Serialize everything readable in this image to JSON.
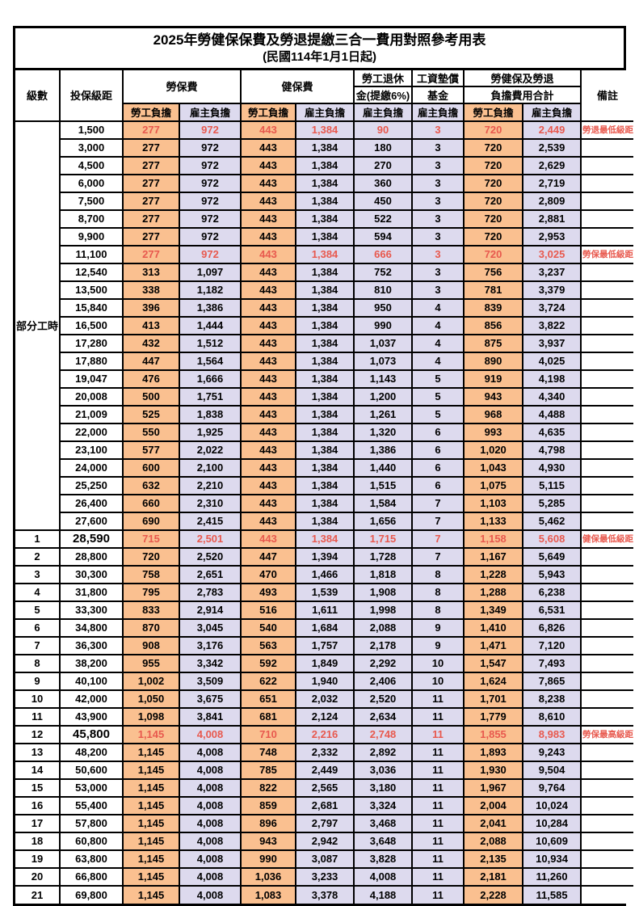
{
  "title": "2025年勞健保保費及勞退提繳三合一費用對照參考用表",
  "subtitle": "(民國114年1月1日起)",
  "colors": {
    "employee_column_bg": "#FAC090",
    "employer_column_bg": "#DDDAEE",
    "highlight_text": "#E8594E",
    "border": "#000000"
  },
  "table": {
    "headers": {
      "level": "級數",
      "bracket": "投保級距",
      "labor_insurance": "勞保費",
      "health_insurance": "健保費",
      "pension_line1": "勞工退休",
      "pension_line2": "金(提繳6%)",
      "fund_line1": "工資墊償",
      "fund_line2": "基金",
      "total_line1": "勞健保及勞退",
      "total_line2": "負擔費用合計",
      "note": "備註",
      "employee": "勞工負擔",
      "employer": "雇主負擔"
    },
    "part_time_label": "部分工時",
    "rows": [
      {
        "level": "",
        "bracket": "1,500",
        "values": [
          "277",
          "972",
          "443",
          "1,384",
          "90",
          "3",
          "720",
          "2,449"
        ],
        "highlight": true,
        "note": "勞退最低級距"
      },
      {
        "level": "",
        "bracket": "3,000",
        "values": [
          "277",
          "972",
          "443",
          "1,384",
          "180",
          "3",
          "720",
          "2,539"
        ],
        "highlight": false,
        "note": ""
      },
      {
        "level": "",
        "bracket": "4,500",
        "values": [
          "277",
          "972",
          "443",
          "1,384",
          "270",
          "3",
          "720",
          "2,629"
        ],
        "highlight": false,
        "note": ""
      },
      {
        "level": "",
        "bracket": "6,000",
        "values": [
          "277",
          "972",
          "443",
          "1,384",
          "360",
          "3",
          "720",
          "2,719"
        ],
        "highlight": false,
        "note": ""
      },
      {
        "level": "",
        "bracket": "7,500",
        "values": [
          "277",
          "972",
          "443",
          "1,384",
          "450",
          "3",
          "720",
          "2,809"
        ],
        "highlight": false,
        "note": ""
      },
      {
        "level": "",
        "bracket": "8,700",
        "values": [
          "277",
          "972",
          "443",
          "1,384",
          "522",
          "3",
          "720",
          "2,881"
        ],
        "highlight": false,
        "note": ""
      },
      {
        "level": "",
        "bracket": "9,900",
        "values": [
          "277",
          "972",
          "443",
          "1,384",
          "594",
          "3",
          "720",
          "2,953"
        ],
        "highlight": false,
        "note": ""
      },
      {
        "level": "",
        "bracket": "11,100",
        "values": [
          "277",
          "972",
          "443",
          "1,384",
          "666",
          "3",
          "720",
          "3,025"
        ],
        "highlight": true,
        "note": "勞保最低級距"
      },
      {
        "level": "",
        "bracket": "12,540",
        "values": [
          "313",
          "1,097",
          "443",
          "1,384",
          "752",
          "3",
          "756",
          "3,237"
        ],
        "highlight": false,
        "note": ""
      },
      {
        "level": "",
        "bracket": "13,500",
        "values": [
          "338",
          "1,182",
          "443",
          "1,384",
          "810",
          "3",
          "781",
          "3,379"
        ],
        "highlight": false,
        "note": ""
      },
      {
        "level": "",
        "bracket": "15,840",
        "values": [
          "396",
          "1,386",
          "443",
          "1,384",
          "950",
          "4",
          "839",
          "3,724"
        ],
        "highlight": false,
        "note": ""
      },
      {
        "level": "",
        "bracket": "16,500",
        "values": [
          "413",
          "1,444",
          "443",
          "1,384",
          "990",
          "4",
          "856",
          "3,822"
        ],
        "highlight": false,
        "note": ""
      },
      {
        "level": "",
        "bracket": "17,280",
        "values": [
          "432",
          "1,512",
          "443",
          "1,384",
          "1,037",
          "4",
          "875",
          "3,937"
        ],
        "highlight": false,
        "note": ""
      },
      {
        "level": "",
        "bracket": "17,880",
        "values": [
          "447",
          "1,564",
          "443",
          "1,384",
          "1,073",
          "4",
          "890",
          "4,025"
        ],
        "highlight": false,
        "note": ""
      },
      {
        "level": "",
        "bracket": "19,047",
        "values": [
          "476",
          "1,666",
          "443",
          "1,384",
          "1,143",
          "5",
          "919",
          "4,198"
        ],
        "highlight": false,
        "note": ""
      },
      {
        "level": "",
        "bracket": "20,008",
        "values": [
          "500",
          "1,751",
          "443",
          "1,384",
          "1,200",
          "5",
          "943",
          "4,340"
        ],
        "highlight": false,
        "note": ""
      },
      {
        "level": "",
        "bracket": "21,009",
        "values": [
          "525",
          "1,838",
          "443",
          "1,384",
          "1,261",
          "5",
          "968",
          "4,488"
        ],
        "highlight": false,
        "note": ""
      },
      {
        "level": "",
        "bracket": "22,000",
        "values": [
          "550",
          "1,925",
          "443",
          "1,384",
          "1,320",
          "6",
          "993",
          "4,635"
        ],
        "highlight": false,
        "note": ""
      },
      {
        "level": "",
        "bracket": "23,100",
        "values": [
          "577",
          "2,022",
          "443",
          "1,384",
          "1,386",
          "6",
          "1,020",
          "4,798"
        ],
        "highlight": false,
        "note": ""
      },
      {
        "level": "",
        "bracket": "24,000",
        "values": [
          "600",
          "2,100",
          "443",
          "1,384",
          "1,440",
          "6",
          "1,043",
          "4,930"
        ],
        "highlight": false,
        "note": ""
      },
      {
        "level": "",
        "bracket": "25,250",
        "values": [
          "632",
          "2,210",
          "443",
          "1,384",
          "1,515",
          "6",
          "1,075",
          "5,115"
        ],
        "highlight": false,
        "note": ""
      },
      {
        "level": "",
        "bracket": "26,400",
        "values": [
          "660",
          "2,310",
          "443",
          "1,384",
          "1,584",
          "7",
          "1,103",
          "5,285"
        ],
        "highlight": false,
        "note": ""
      },
      {
        "level": "",
        "bracket": "27,600",
        "values": [
          "690",
          "2,415",
          "443",
          "1,384",
          "1,656",
          "7",
          "1,133",
          "5,462"
        ],
        "highlight": false,
        "note": ""
      },
      {
        "level": "1",
        "bracket": "28,590",
        "values": [
          "715",
          "2,501",
          "443",
          "1,384",
          "1,715",
          "7",
          "1,158",
          "5,608"
        ],
        "highlight": true,
        "emphasis": true,
        "note": "健保最低級距"
      },
      {
        "level": "2",
        "bracket": "28,800",
        "values": [
          "720",
          "2,520",
          "447",
          "1,394",
          "1,728",
          "7",
          "1,167",
          "5,649"
        ],
        "highlight": false,
        "note": ""
      },
      {
        "level": "3",
        "bracket": "30,300",
        "values": [
          "758",
          "2,651",
          "470",
          "1,466",
          "1,818",
          "8",
          "1,228",
          "5,943"
        ],
        "highlight": false,
        "note": ""
      },
      {
        "level": "4",
        "bracket": "31,800",
        "values": [
          "795",
          "2,783",
          "493",
          "1,539",
          "1,908",
          "8",
          "1,288",
          "6,238"
        ],
        "highlight": false,
        "note": ""
      },
      {
        "level": "5",
        "bracket": "33,300",
        "values": [
          "833",
          "2,914",
          "516",
          "1,611",
          "1,998",
          "8",
          "1,349",
          "6,531"
        ],
        "highlight": false,
        "note": ""
      },
      {
        "level": "6",
        "bracket": "34,800",
        "values": [
          "870",
          "3,045",
          "540",
          "1,684",
          "2,088",
          "9",
          "1,410",
          "6,826"
        ],
        "highlight": false,
        "note": ""
      },
      {
        "level": "7",
        "bracket": "36,300",
        "values": [
          "908",
          "3,176",
          "563",
          "1,757",
          "2,178",
          "9",
          "1,471",
          "7,120"
        ],
        "highlight": false,
        "note": ""
      },
      {
        "level": "8",
        "bracket": "38,200",
        "values": [
          "955",
          "3,342",
          "592",
          "1,849",
          "2,292",
          "10",
          "1,547",
          "7,493"
        ],
        "highlight": false,
        "note": ""
      },
      {
        "level": "9",
        "bracket": "40,100",
        "values": [
          "1,002",
          "3,509",
          "622",
          "1,940",
          "2,406",
          "10",
          "1,624",
          "7,865"
        ],
        "highlight": false,
        "note": ""
      },
      {
        "level": "10",
        "bracket": "42,000",
        "values": [
          "1,050",
          "3,675",
          "651",
          "2,032",
          "2,520",
          "11",
          "1,701",
          "8,238"
        ],
        "highlight": false,
        "note": ""
      },
      {
        "level": "11",
        "bracket": "43,900",
        "values": [
          "1,098",
          "3,841",
          "681",
          "2,124",
          "2,634",
          "11",
          "1,779",
          "8,610"
        ],
        "highlight": false,
        "note": ""
      },
      {
        "level": "12",
        "bracket": "45,800",
        "values": [
          "1,145",
          "4,008",
          "710",
          "2,216",
          "2,748",
          "11",
          "1,855",
          "8,983"
        ],
        "highlight": true,
        "emphasis": true,
        "note": "勞保最高級距"
      },
      {
        "level": "13",
        "bracket": "48,200",
        "values": [
          "1,145",
          "4,008",
          "748",
          "2,332",
          "2,892",
          "11",
          "1,893",
          "9,243"
        ],
        "highlight": false,
        "note": ""
      },
      {
        "level": "14",
        "bracket": "50,600",
        "values": [
          "1,145",
          "4,008",
          "785",
          "2,449",
          "3,036",
          "11",
          "1,930",
          "9,504"
        ],
        "highlight": false,
        "note": ""
      },
      {
        "level": "15",
        "bracket": "53,000",
        "values": [
          "1,145",
          "4,008",
          "822",
          "2,565",
          "3,180",
          "11",
          "1,967",
          "9,764"
        ],
        "highlight": false,
        "note": ""
      },
      {
        "level": "16",
        "bracket": "55,400",
        "values": [
          "1,145",
          "4,008",
          "859",
          "2,681",
          "3,324",
          "11",
          "2,004",
          "10,024"
        ],
        "highlight": false,
        "note": ""
      },
      {
        "level": "17",
        "bracket": "57,800",
        "values": [
          "1,145",
          "4,008",
          "896",
          "2,797",
          "3,468",
          "11",
          "2,041",
          "10,284"
        ],
        "highlight": false,
        "note": ""
      },
      {
        "level": "18",
        "bracket": "60,800",
        "values": [
          "1,145",
          "4,008",
          "943",
          "2,942",
          "3,648",
          "11",
          "2,088",
          "10,609"
        ],
        "highlight": false,
        "note": ""
      },
      {
        "level": "19",
        "bracket": "63,800",
        "values": [
          "1,145",
          "4,008",
          "990",
          "3,087",
          "3,828",
          "11",
          "2,135",
          "10,934"
        ],
        "highlight": false,
        "note": ""
      },
      {
        "level": "20",
        "bracket": "66,800",
        "values": [
          "1,145",
          "4,008",
          "1,036",
          "3,233",
          "4,008",
          "11",
          "2,181",
          "11,260"
        ],
        "highlight": false,
        "note": ""
      },
      {
        "level": "21",
        "bracket": "69,800",
        "values": [
          "1,145",
          "4,008",
          "1,083",
          "3,378",
          "4,188",
          "11",
          "2,228",
          "11,585"
        ],
        "highlight": false,
        "note": ""
      }
    ]
  }
}
